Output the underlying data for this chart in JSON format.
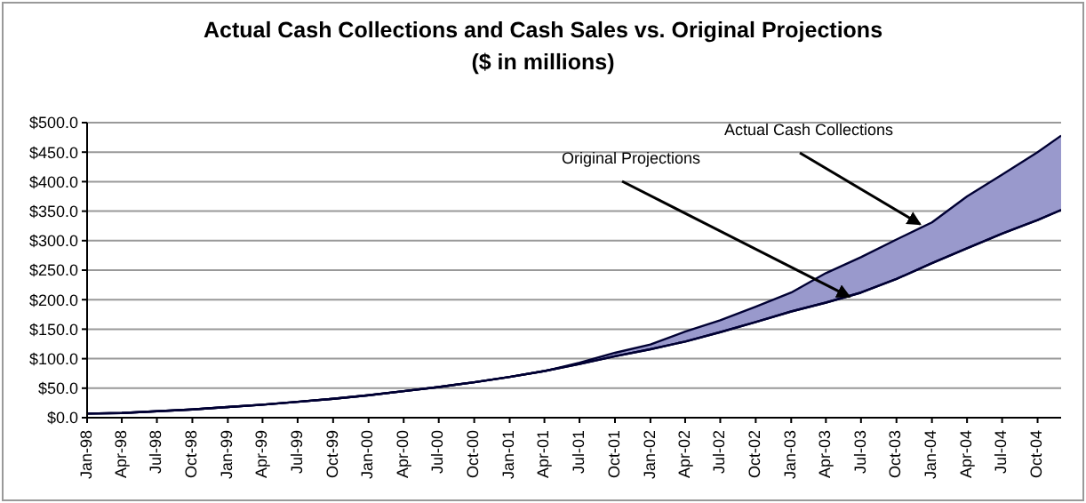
{
  "chart_data": {
    "type": "line",
    "title": "Actual Cash Collections and Cash Sales vs. Original Projections",
    "subtitle": "($ in millions)",
    "x": [
      "1998-01",
      "1998-04",
      "1998-07",
      "1998-10",
      "1999-01",
      "1999-04",
      "1999-07",
      "1999-10",
      "2000-01",
      "2000-04",
      "2000-07",
      "2000-10",
      "2001-01",
      "2001-04",
      "2001-07",
      "2001-10",
      "2002-01",
      "2002-04",
      "2002-07",
      "2002-10",
      "2003-01",
      "2003-04",
      "2003-07",
      "2003-10",
      "2004-01",
      "2004-04",
      "2004-07",
      "2004-10",
      "2004-12"
    ],
    "series": [
      {
        "color": "#000033",
        "values": [
          7,
          8,
          11,
          14,
          18,
          22,
          27,
          32,
          38,
          45,
          52,
          60,
          69,
          79,
          91,
          104,
          116,
          129,
          145,
          162,
          180,
          195,
          212,
          235,
          262,
          287,
          312,
          335,
          352
        ]
      },
      {
        "type": "area",
        "color": "#9999cc",
        "values": [
          7,
          8,
          11,
          14,
          18,
          22,
          27,
          32,
          38,
          45,
          52,
          60,
          69,
          79,
          93,
          110,
          124,
          146,
          165,
          188,
          212,
          245,
          272,
          302,
          331,
          375,
          412,
          450,
          478
        ]
      }
    ],
    "xlim": [
      "1998-01",
      "2004-12"
    ],
    "xticks": [
      {
        "value": "1998-01",
        "label": "Jan-98"
      },
      {
        "value": "1998-04",
        "label": "Apr-98"
      },
      {
        "value": "1998-07",
        "label": "Jul-98"
      },
      {
        "value": "1998-10",
        "label": "Oct-98"
      },
      {
        "value": "1999-01",
        "label": "Jan-99"
      },
      {
        "value": "1999-04",
        "label": "Apr-99"
      },
      {
        "value": "1999-07",
        "label": "Jul-99"
      },
      {
        "value": "1999-10",
        "label": "Oct-99"
      },
      {
        "value": "2000-01",
        "label": "Jan-00"
      },
      {
        "value": "2000-04",
        "label": "Apr-00"
      },
      {
        "value": "2000-07",
        "label": "Jul-00"
      },
      {
        "value": "2000-10",
        "label": "Oct-00"
      },
      {
        "value": "2001-01",
        "label": "Jan-01"
      },
      {
        "value": "2001-04",
        "label": "Apr-01"
      },
      {
        "value": "2001-07",
        "label": "Jul-01"
      },
      {
        "value": "2001-10",
        "label": "Oct-01"
      },
      {
        "value": "2002-01",
        "label": "Jan-02"
      },
      {
        "value": "2002-04",
        "label": "Apr-02"
      },
      {
        "value": "2002-07",
        "label": "Jul-02"
      },
      {
        "value": "2002-10",
        "label": "Oct-02"
      },
      {
        "value": "2003-01",
        "label": "Jan-03"
      },
      {
        "value": "2003-04",
        "label": "Apr-03"
      },
      {
        "value": "2003-07",
        "label": "Jul-03"
      },
      {
        "value": "2003-10",
        "label": "Oct-03"
      },
      {
        "value": "2004-01",
        "label": "Jan-04"
      },
      {
        "value": "2004-04",
        "label": "Apr-04"
      },
      {
        "value": "2004-07",
        "label": "Jul-04"
      },
      {
        "value": "2004-10",
        "label": "Oct-04"
      }
    ],
    "ylim": [
      0,
      500
    ],
    "yticks": [
      {
        "value": 0,
        "label": "$0.0"
      },
      {
        "value": 50,
        "label": "$50.0"
      },
      {
        "value": 100,
        "label": "$100.0"
      },
      {
        "value": 150,
        "label": "$150.0"
      },
      {
        "value": 200,
        "label": "$200.0"
      },
      {
        "value": 250,
        "label": "$250.0"
      },
      {
        "value": 300,
        "label": "$300.0"
      },
      {
        "value": 350,
        "label": "$350.0"
      },
      {
        "value": 400,
        "label": "$400.0"
      },
      {
        "value": 450,
        "label": "$450.0"
      },
      {
        "value": 500,
        "label": "$500.0"
      }
    ],
    "grid": "y",
    "marker": "none",
    "annotations": [
      {
        "text": "Actual Cash Collections",
        "x": "2003-12",
        "y": 328
      },
      {
        "text": "Original Projections",
        "x": "2003-06",
        "y": 205
      }
    ]
  }
}
